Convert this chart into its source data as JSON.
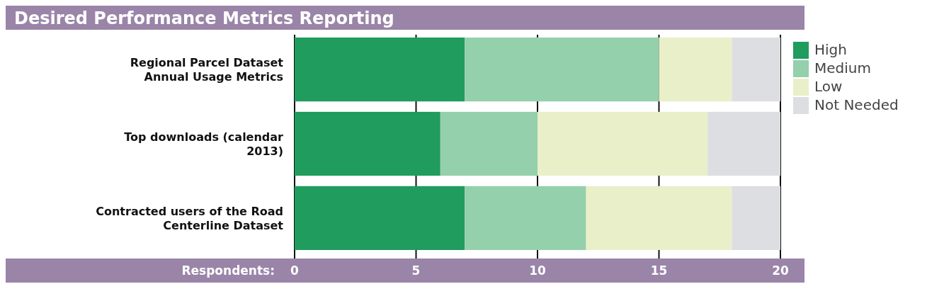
{
  "chart_data": {
    "type": "bar",
    "orientation": "horizontal",
    "stacked": true,
    "title": "Desired Performance Metrics Reporting",
    "xlabel": "Respondents:",
    "categories": [
      "Regional Parcel Dataset Annual Usage Metrics",
      "Top downloads (calendar 2013)",
      "Contracted users of the Road Centerline Dataset"
    ],
    "series": [
      {
        "name": "High",
        "color": "#1f9c5e",
        "values": [
          7,
          6,
          7
        ]
      },
      {
        "name": "Medium",
        "color": "#94d0ab",
        "values": [
          8,
          4,
          5
        ]
      },
      {
        "name": "Low",
        "color": "#e9efc9",
        "values": [
          3,
          7,
          6
        ]
      },
      {
        "name": "Not Needed",
        "color": "#dddee1",
        "values": [
          2,
          3,
          2
        ]
      }
    ],
    "xlim": [
      0,
      20
    ],
    "xticks": [
      0,
      5,
      10,
      15,
      20
    ],
    "grid": "x",
    "legend": "right"
  }
}
